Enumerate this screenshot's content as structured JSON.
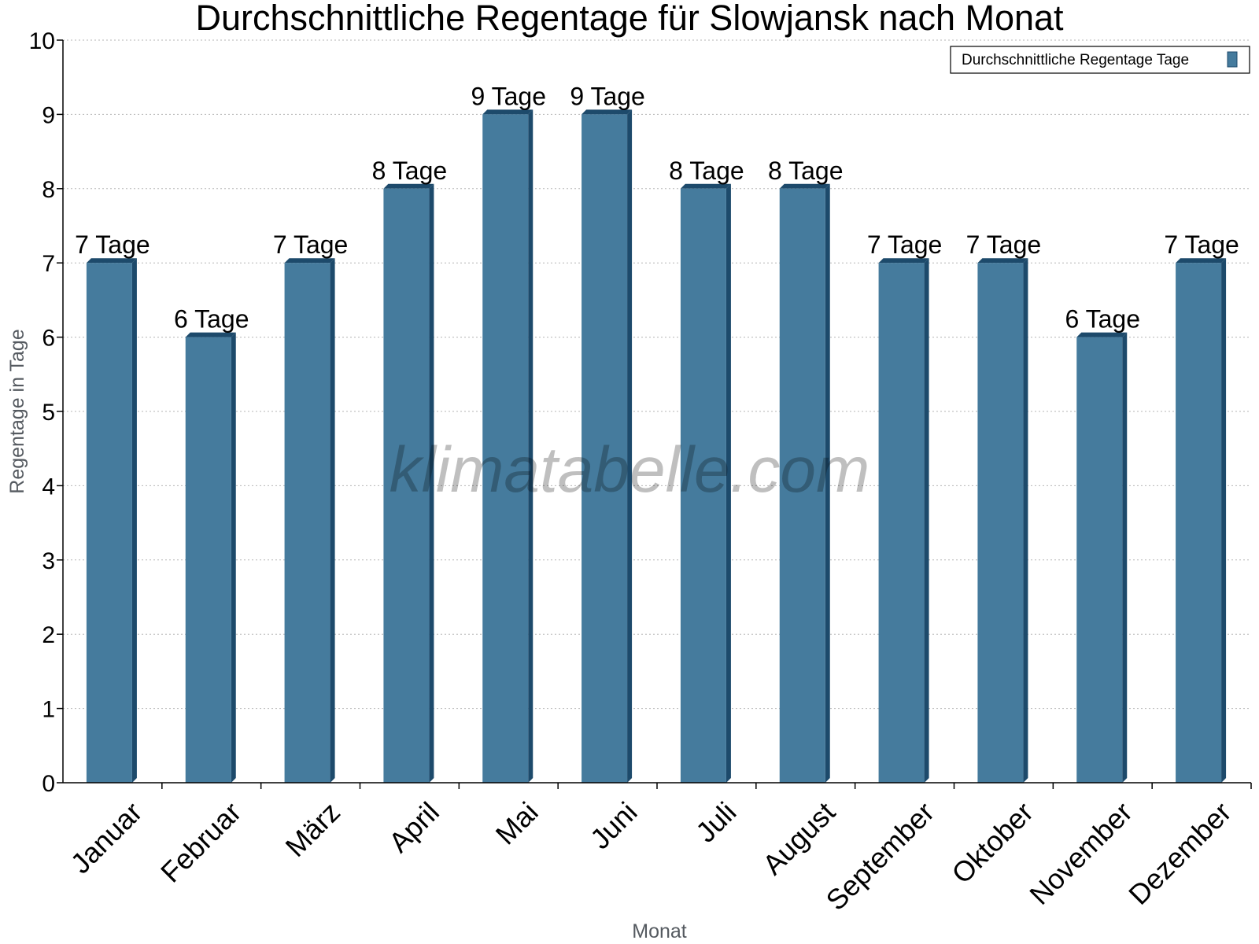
{
  "chart_data": {
    "type": "bar",
    "title": "Durchschnittliche Regentage für Slowjansk nach Monat",
    "xlabel": "Monat",
    "ylabel": "Regentage in Tage",
    "ylim": [
      0,
      10
    ],
    "yticks": [
      "0",
      "1",
      "2",
      "3",
      "4",
      "5",
      "6",
      "7",
      "8",
      "9",
      "10"
    ],
    "grid": true,
    "legend_position": "top-right",
    "categories": [
      "Januar",
      "Februar",
      "März",
      "April",
      "Mai",
      "Juni",
      "Juli",
      "August",
      "September",
      "Oktober",
      "November",
      "Dezember"
    ],
    "series": [
      {
        "name": "Durchschnittliche Regentage Tage",
        "values": [
          7,
          6,
          7,
          8,
          9,
          9,
          8,
          8,
          7,
          7,
          6,
          7
        ],
        "labels": [
          "7 Tage",
          "6 Tage",
          "7 Tage",
          "8 Tage",
          "9 Tage",
          "9 Tage",
          "8 Tage",
          "8 Tage",
          "7 Tage",
          "7 Tage",
          "6 Tage",
          "7 Tage"
        ],
        "color": "#457b9d",
        "side_color": "#1d4a6b"
      }
    ]
  },
  "watermark": "klimatabelle.com"
}
